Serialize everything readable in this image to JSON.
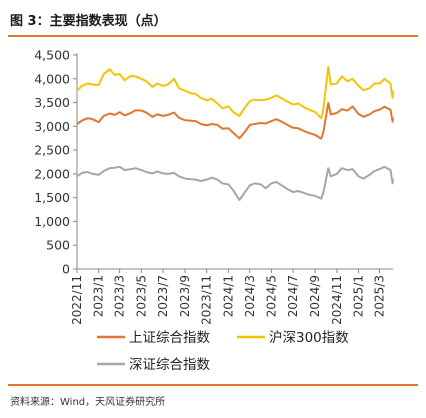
{
  "title": "图 3：主要指数表现（点）",
  "source": "资料来源：Wind，天风证券研究所",
  "chart_data": {
    "type": "line",
    "ylim": [
      0,
      4500
    ],
    "y_ticks": [
      0,
      500,
      1000,
      1500,
      2000,
      2500,
      3000,
      3500,
      4000,
      4500
    ],
    "y_tick_labels": [
      "0",
      "500",
      "1,000",
      "1,500",
      "2,000",
      "2,500",
      "3,000",
      "3,500",
      "4,000",
      "4,500"
    ],
    "x_range": [
      "2022-11-01",
      "2025-04-08"
    ],
    "x_ticks": [
      "2022/11",
      "2023/1",
      "2023/3",
      "2023/5",
      "2023/7",
      "2023/9",
      "2023/11",
      "2024/1",
      "2024/3",
      "2024/5",
      "2024/7",
      "2024/9",
      "2024/11",
      "2025/1",
      "2025/3"
    ],
    "grid": false,
    "legend_position": "bottom",
    "series": [
      {
        "name": "上证综合指数",
        "color": "#e2762f",
        "points": [
          [
            "2022-11-01",
            3050
          ],
          [
            "2022-11-15",
            3120
          ],
          [
            "2022-12-01",
            3170
          ],
          [
            "2022-12-15",
            3150
          ],
          [
            "2023-01-01",
            3090
          ],
          [
            "2023-01-15",
            3220
          ],
          [
            "2023-02-01",
            3270
          ],
          [
            "2023-02-15",
            3240
          ],
          [
            "2023-03-01",
            3300
          ],
          [
            "2023-03-15",
            3230
          ],
          [
            "2023-04-01",
            3280
          ],
          [
            "2023-04-15",
            3340
          ],
          [
            "2023-05-01",
            3330
          ],
          [
            "2023-05-15",
            3290
          ],
          [
            "2023-06-01",
            3200
          ],
          [
            "2023-06-15",
            3250
          ],
          [
            "2023-07-01",
            3220
          ],
          [
            "2023-07-15",
            3240
          ],
          [
            "2023-08-01",
            3290
          ],
          [
            "2023-08-15",
            3180
          ],
          [
            "2023-09-01",
            3130
          ],
          [
            "2023-09-15",
            3120
          ],
          [
            "2023-10-01",
            3110
          ],
          [
            "2023-10-15",
            3050
          ],
          [
            "2023-11-01",
            3020
          ],
          [
            "2023-11-15",
            3050
          ],
          [
            "2023-12-01",
            3030
          ],
          [
            "2023-12-15",
            2950
          ],
          [
            "2024-01-01",
            2960
          ],
          [
            "2024-01-15",
            2860
          ],
          [
            "2024-02-01",
            2750
          ],
          [
            "2024-02-15",
            2870
          ],
          [
            "2024-03-01",
            3030
          ],
          [
            "2024-03-15",
            3050
          ],
          [
            "2024-04-01",
            3070
          ],
          [
            "2024-04-15",
            3060
          ],
          [
            "2024-05-01",
            3110
          ],
          [
            "2024-05-15",
            3150
          ],
          [
            "2024-06-01",
            3090
          ],
          [
            "2024-06-15",
            3030
          ],
          [
            "2024-07-01",
            2970
          ],
          [
            "2024-07-15",
            2960
          ],
          [
            "2024-08-01",
            2900
          ],
          [
            "2024-08-15",
            2860
          ],
          [
            "2024-09-01",
            2820
          ],
          [
            "2024-09-18",
            2740
          ],
          [
            "2024-09-24",
            2870
          ],
          [
            "2024-10-08",
            3490
          ],
          [
            "2024-10-15",
            3250
          ],
          [
            "2024-11-01",
            3280
          ],
          [
            "2024-11-15",
            3360
          ],
          [
            "2024-12-01",
            3330
          ],
          [
            "2024-12-15",
            3420
          ],
          [
            "2025-01-01",
            3260
          ],
          [
            "2025-01-15",
            3200
          ],
          [
            "2025-02-01",
            3250
          ],
          [
            "2025-02-15",
            3320
          ],
          [
            "2025-03-01",
            3350
          ],
          [
            "2025-03-15",
            3410
          ],
          [
            "2025-04-01",
            3350
          ],
          [
            "2025-04-07",
            3100
          ],
          [
            "2025-04-08",
            3180
          ]
        ]
      },
      {
        "name": "沪深300指数",
        "color": "#f5c400",
        "points": [
          [
            "2022-11-01",
            3750
          ],
          [
            "2022-11-15",
            3850
          ],
          [
            "2022-12-01",
            3900
          ],
          [
            "2022-12-15",
            3880
          ],
          [
            "2023-01-01",
            3870
          ],
          [
            "2023-01-15",
            4100
          ],
          [
            "2023-02-01",
            4200
          ],
          [
            "2023-02-15",
            4080
          ],
          [
            "2023-03-01",
            4100
          ],
          [
            "2023-03-15",
            3970
          ],
          [
            "2023-04-01",
            4060
          ],
          [
            "2023-04-15",
            4050
          ],
          [
            "2023-05-01",
            4000
          ],
          [
            "2023-05-15",
            3950
          ],
          [
            "2023-06-01",
            3830
          ],
          [
            "2023-06-15",
            3900
          ],
          [
            "2023-07-01",
            3850
          ],
          [
            "2023-07-15",
            3880
          ],
          [
            "2023-08-01",
            4000
          ],
          [
            "2023-08-15",
            3800
          ],
          [
            "2023-09-01",
            3750
          ],
          [
            "2023-09-15",
            3700
          ],
          [
            "2023-10-01",
            3680
          ],
          [
            "2023-10-15",
            3600
          ],
          [
            "2023-11-01",
            3550
          ],
          [
            "2023-11-15",
            3580
          ],
          [
            "2023-12-01",
            3480
          ],
          [
            "2023-12-15",
            3380
          ],
          [
            "2024-01-01",
            3420
          ],
          [
            "2024-01-15",
            3300
          ],
          [
            "2024-02-01",
            3220
          ],
          [
            "2024-02-15",
            3380
          ],
          [
            "2024-03-01",
            3530
          ],
          [
            "2024-03-15",
            3560
          ],
          [
            "2024-04-01",
            3550
          ],
          [
            "2024-04-15",
            3560
          ],
          [
            "2024-05-01",
            3600
          ],
          [
            "2024-05-15",
            3650
          ],
          [
            "2024-06-01",
            3580
          ],
          [
            "2024-06-15",
            3520
          ],
          [
            "2024-07-01",
            3460
          ],
          [
            "2024-07-15",
            3480
          ],
          [
            "2024-08-01",
            3400
          ],
          [
            "2024-08-15",
            3350
          ],
          [
            "2024-09-01",
            3300
          ],
          [
            "2024-09-18",
            3170
          ],
          [
            "2024-09-24",
            3350
          ],
          [
            "2024-10-08",
            4250
          ],
          [
            "2024-10-15",
            3880
          ],
          [
            "2024-11-01",
            3900
          ],
          [
            "2024-11-15",
            4050
          ],
          [
            "2024-12-01",
            3950
          ],
          [
            "2024-12-15",
            4000
          ],
          [
            "2025-01-01",
            3850
          ],
          [
            "2025-01-15",
            3760
          ],
          [
            "2025-02-01",
            3800
          ],
          [
            "2025-02-15",
            3900
          ],
          [
            "2025-03-01",
            3900
          ],
          [
            "2025-03-15",
            4000
          ],
          [
            "2025-04-01",
            3900
          ],
          [
            "2025-04-07",
            3600
          ],
          [
            "2025-04-08",
            3750
          ]
        ]
      },
      {
        "name": "深证综合指数",
        "color": "#a6a6a6",
        "points": [
          [
            "2022-11-01",
            1950
          ],
          [
            "2022-11-15",
            2020
          ],
          [
            "2022-12-01",
            2040
          ],
          [
            "2022-12-15",
            2000
          ],
          [
            "2023-01-01",
            1980
          ],
          [
            "2023-01-15",
            2060
          ],
          [
            "2023-02-01",
            2120
          ],
          [
            "2023-02-15",
            2130
          ],
          [
            "2023-03-01",
            2150
          ],
          [
            "2023-03-15",
            2080
          ],
          [
            "2023-04-01",
            2100
          ],
          [
            "2023-04-15",
            2120
          ],
          [
            "2023-05-01",
            2080
          ],
          [
            "2023-05-15",
            2040
          ],
          [
            "2023-06-01",
            2010
          ],
          [
            "2023-06-15",
            2050
          ],
          [
            "2023-07-01",
            2010
          ],
          [
            "2023-07-15",
            2000
          ],
          [
            "2023-08-01",
            2020
          ],
          [
            "2023-08-15",
            1950
          ],
          [
            "2023-09-01",
            1900
          ],
          [
            "2023-09-15",
            1890
          ],
          [
            "2023-10-01",
            1880
          ],
          [
            "2023-10-15",
            1850
          ],
          [
            "2023-11-01",
            1880
          ],
          [
            "2023-11-15",
            1920
          ],
          [
            "2023-12-01",
            1880
          ],
          [
            "2023-12-15",
            1800
          ],
          [
            "2024-01-01",
            1780
          ],
          [
            "2024-01-15",
            1650
          ],
          [
            "2024-02-01",
            1450
          ],
          [
            "2024-02-15",
            1600
          ],
          [
            "2024-03-01",
            1760
          ],
          [
            "2024-03-15",
            1800
          ],
          [
            "2024-04-01",
            1780
          ],
          [
            "2024-04-15",
            1700
          ],
          [
            "2024-05-01",
            1800
          ],
          [
            "2024-05-15",
            1830
          ],
          [
            "2024-06-01",
            1750
          ],
          [
            "2024-06-15",
            1680
          ],
          [
            "2024-07-01",
            1620
          ],
          [
            "2024-07-15",
            1640
          ],
          [
            "2024-08-01",
            1600
          ],
          [
            "2024-08-15",
            1560
          ],
          [
            "2024-09-01",
            1540
          ],
          [
            "2024-09-18",
            1480
          ],
          [
            "2024-09-24",
            1600
          ],
          [
            "2024-10-08",
            2120
          ],
          [
            "2024-10-15",
            1950
          ],
          [
            "2024-11-01",
            2000
          ],
          [
            "2024-11-15",
            2120
          ],
          [
            "2024-12-01",
            2080
          ],
          [
            "2024-12-15",
            2100
          ],
          [
            "2025-01-01",
            1950
          ],
          [
            "2025-01-15",
            1900
          ],
          [
            "2025-02-01",
            1980
          ],
          [
            "2025-02-15",
            2060
          ],
          [
            "2025-03-01",
            2100
          ],
          [
            "2025-03-15",
            2150
          ],
          [
            "2025-04-01",
            2080
          ],
          [
            "2025-04-07",
            1800
          ],
          [
            "2025-04-08",
            1900
          ]
        ]
      }
    ]
  }
}
